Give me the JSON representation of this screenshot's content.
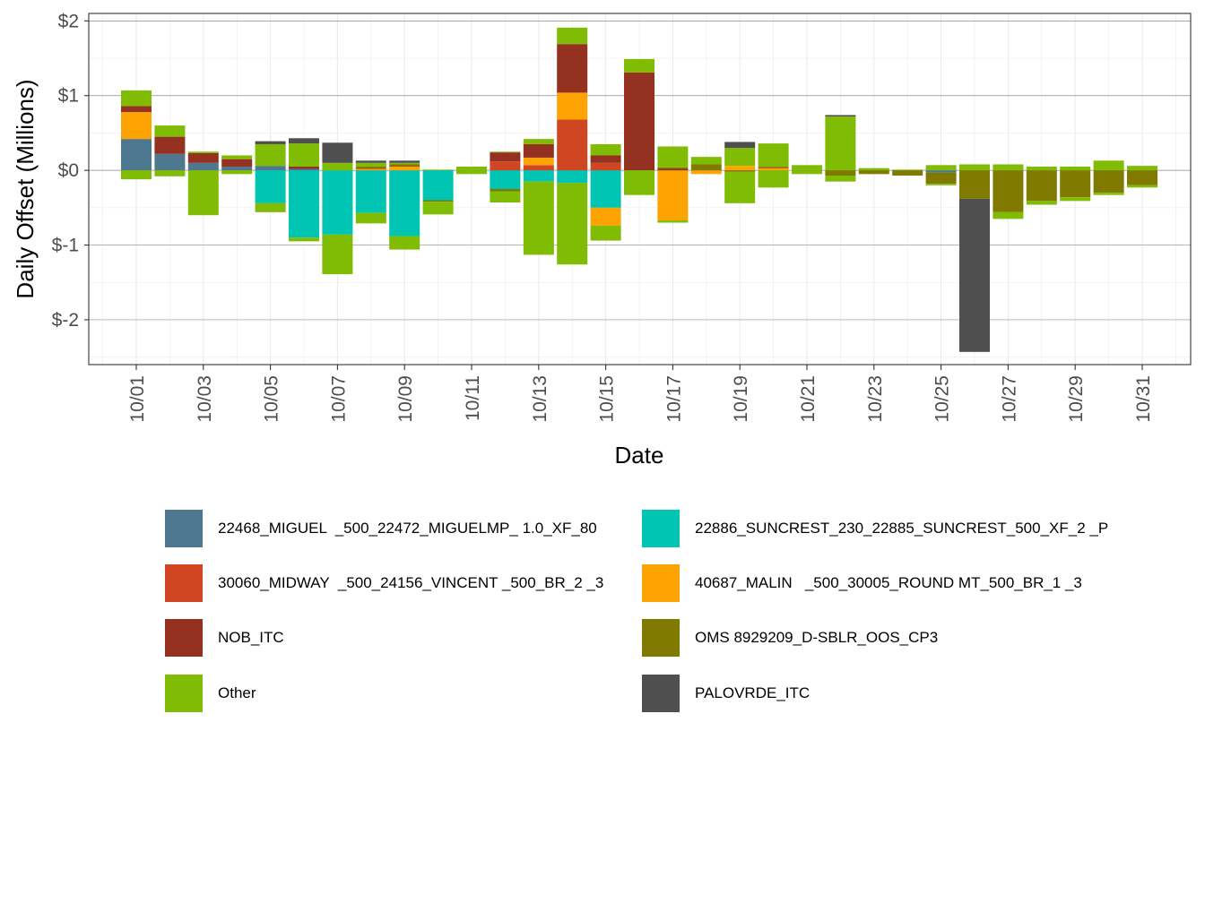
{
  "chart_data": {
    "type": "bar",
    "stacked": true,
    "title": "",
    "xlabel": "Date",
    "ylabel": "Daily Offset (Millions)",
    "ylim": [
      -2.6,
      2.1
    ],
    "y_ticks": [
      2,
      1,
      0,
      -1,
      -2
    ],
    "y_tick_labels": [
      "$2",
      "$1",
      "$0",
      "$-1",
      "$-2"
    ],
    "x_tick_labels": [
      "10/01",
      "10/03",
      "10/05",
      "10/07",
      "10/09",
      "10/11",
      "10/13",
      "10/15",
      "10/17",
      "10/19",
      "10/21",
      "10/23",
      "10/25",
      "10/27",
      "10/29",
      "10/31"
    ],
    "categories": [
      "10/01",
      "10/02",
      "10/03",
      "10/04",
      "10/05",
      "10/06",
      "10/07",
      "10/08",
      "10/09",
      "10/10",
      "10/11",
      "10/12",
      "10/13",
      "10/14",
      "10/15",
      "10/16",
      "10/17",
      "10/18",
      "10/19",
      "10/20",
      "10/21",
      "10/22",
      "10/23",
      "10/24",
      "10/25",
      "10/26",
      "10/27",
      "10/28",
      "10/29",
      "10/30",
      "10/31"
    ],
    "grid": true,
    "legend_position": "bottom",
    "series": [
      {
        "name": "22468_MIGUEL  _500_22472_MIGUELMP_ 1.0_XF_80",
        "color": "#4e7890",
        "values": [
          0.42,
          0.22,
          0.1,
          0.05,
          0.06,
          0.02,
          0,
          0,
          0,
          0,
          0,
          0,
          0,
          0,
          0,
          0,
          0,
          0,
          0,
          0,
          0,
          0,
          0,
          0,
          -0.03,
          0,
          0,
          0,
          0,
          0,
          0
        ]
      },
      {
        "name": "22886_SUNCREST_230_22885_SUNCREST_500_XF_2 _P",
        "color": "#00c5b2",
        "values": [
          0,
          0,
          0,
          0,
          -0.44,
          -0.9,
          -0.86,
          -0.57,
          -0.88,
          -0.4,
          0,
          -0.25,
          -0.15,
          -0.17,
          -0.5,
          0,
          0,
          0,
          0,
          0,
          0,
          0,
          0,
          0,
          0,
          0,
          0,
          0,
          0,
          0,
          0
        ]
      },
      {
        "name": "30060_MIDWAY  _500_24156_VINCENT _500_BR_2 _3",
        "color": "#d04623",
        "values": [
          0,
          0,
          0,
          0,
          0,
          0,
          0,
          0,
          0,
          0,
          0,
          0.12,
          0.07,
          0.68,
          0.1,
          0,
          0,
          0,
          0,
          0,
          0,
          0,
          0,
          0,
          0,
          0,
          0,
          0,
          0,
          0,
          0
        ]
      },
      {
        "name": "40687_MALIN   _500_30005_ROUND MT_500_BR_1 _3",
        "color": "#fea402",
        "values": [
          0.36,
          0,
          0,
          0,
          0,
          0,
          0,
          0.02,
          0.05,
          0,
          0,
          0,
          0.1,
          0.36,
          -0.24,
          0,
          -0.67,
          -0.05,
          0.06,
          0.03,
          0,
          0,
          0,
          0,
          0,
          0,
          0,
          0,
          0,
          0,
          0
        ]
      },
      {
        "name": "NOB_ITC",
        "color": "#943121",
        "values": [
          0.08,
          0.23,
          0.13,
          0.1,
          0,
          0.03,
          0,
          0.01,
          0.01,
          0,
          0,
          0.12,
          0.18,
          0.65,
          0.1,
          1.31,
          0.02,
          0,
          0,
          0.01,
          0,
          0,
          0,
          0,
          0,
          0,
          0,
          0,
          0,
          0,
          0
        ]
      },
      {
        "name": "OMS 8929209_D-SBLR_OOS_CP3",
        "color": "#807a00",
        "values": [
          0,
          0,
          0,
          0,
          0,
          0,
          0,
          0.02,
          0.02,
          -0.02,
          0,
          -0.03,
          0,
          0,
          0,
          0,
          0.02,
          0.08,
          -0.02,
          0.01,
          0,
          -0.07,
          -0.05,
          -0.07,
          -0.15,
          -0.38,
          -0.56,
          -0.41,
          -0.36,
          -0.3,
          -0.2
        ]
      },
      {
        "name": "Other",
        "color": "#7fbc03",
        "values": [
          0.21,
          0.15,
          0.02,
          0.05,
          0.29,
          0.31,
          0.1,
          0.05,
          0.02,
          0.01,
          0.05,
          0.01,
          0.07,
          0.22,
          0.15,
          0.18,
          0.28,
          0.1,
          0.24,
          0.31,
          0.07,
          0.72,
          0.03,
          0.01,
          0.07,
          0.08,
          0.08,
          0.05,
          0.05,
          0.13,
          0.06
        ]
      },
      {
        "name": "Other",
        "color": "#7fbc03",
        "part": "negative",
        "values": [
          -0.12,
          -0.08,
          -0.6,
          -0.05,
          -0.12,
          -0.05,
          -0.53,
          -0.14,
          -0.18,
          -0.17,
          -0.05,
          -0.15,
          -0.98,
          -1.09,
          -0.2,
          -0.33,
          -0.03,
          0,
          -0.42,
          -0.23,
          -0.05,
          -0.08,
          0,
          0,
          -0.02,
          0,
          -0.09,
          -0.05,
          -0.05,
          -0.03,
          -0.03
        ]
      },
      {
        "name": "PALOVRDE_ITC",
        "color": "#4f4f4f",
        "values": [
          0,
          0,
          0,
          0,
          0.04,
          0.07,
          0.27,
          0.03,
          0.03,
          0,
          0,
          0,
          0,
          0,
          0,
          0,
          0,
          0,
          0.08,
          0,
          0,
          0.02,
          0,
          0,
          0,
          -2.05,
          0,
          0,
          0,
          0,
          0
        ]
      }
    ]
  },
  "legend": {
    "items": [
      {
        "label": "22468_MIGUEL  _500_22472_MIGUELMP_ 1.0_XF_80",
        "color": "#4e7890"
      },
      {
        "label": "22886_SUNCREST_230_22885_SUNCREST_500_XF_2 _P",
        "color": "#00c5b2"
      },
      {
        "label": "30060_MIDWAY  _500_24156_VINCENT _500_BR_2 _3",
        "color": "#d04623"
      },
      {
        "label": "40687_MALIN   _500_30005_ROUND MT_500_BR_1 _3",
        "color": "#fea402"
      },
      {
        "label": "NOB_ITC",
        "color": "#943121"
      },
      {
        "label": "OMS 8929209_D-SBLR_OOS_CP3",
        "color": "#807a00"
      },
      {
        "label": "Other",
        "color": "#7fbc03"
      },
      {
        "label": "PALOVRDE_ITC",
        "color": "#4f4f4f"
      }
    ]
  }
}
